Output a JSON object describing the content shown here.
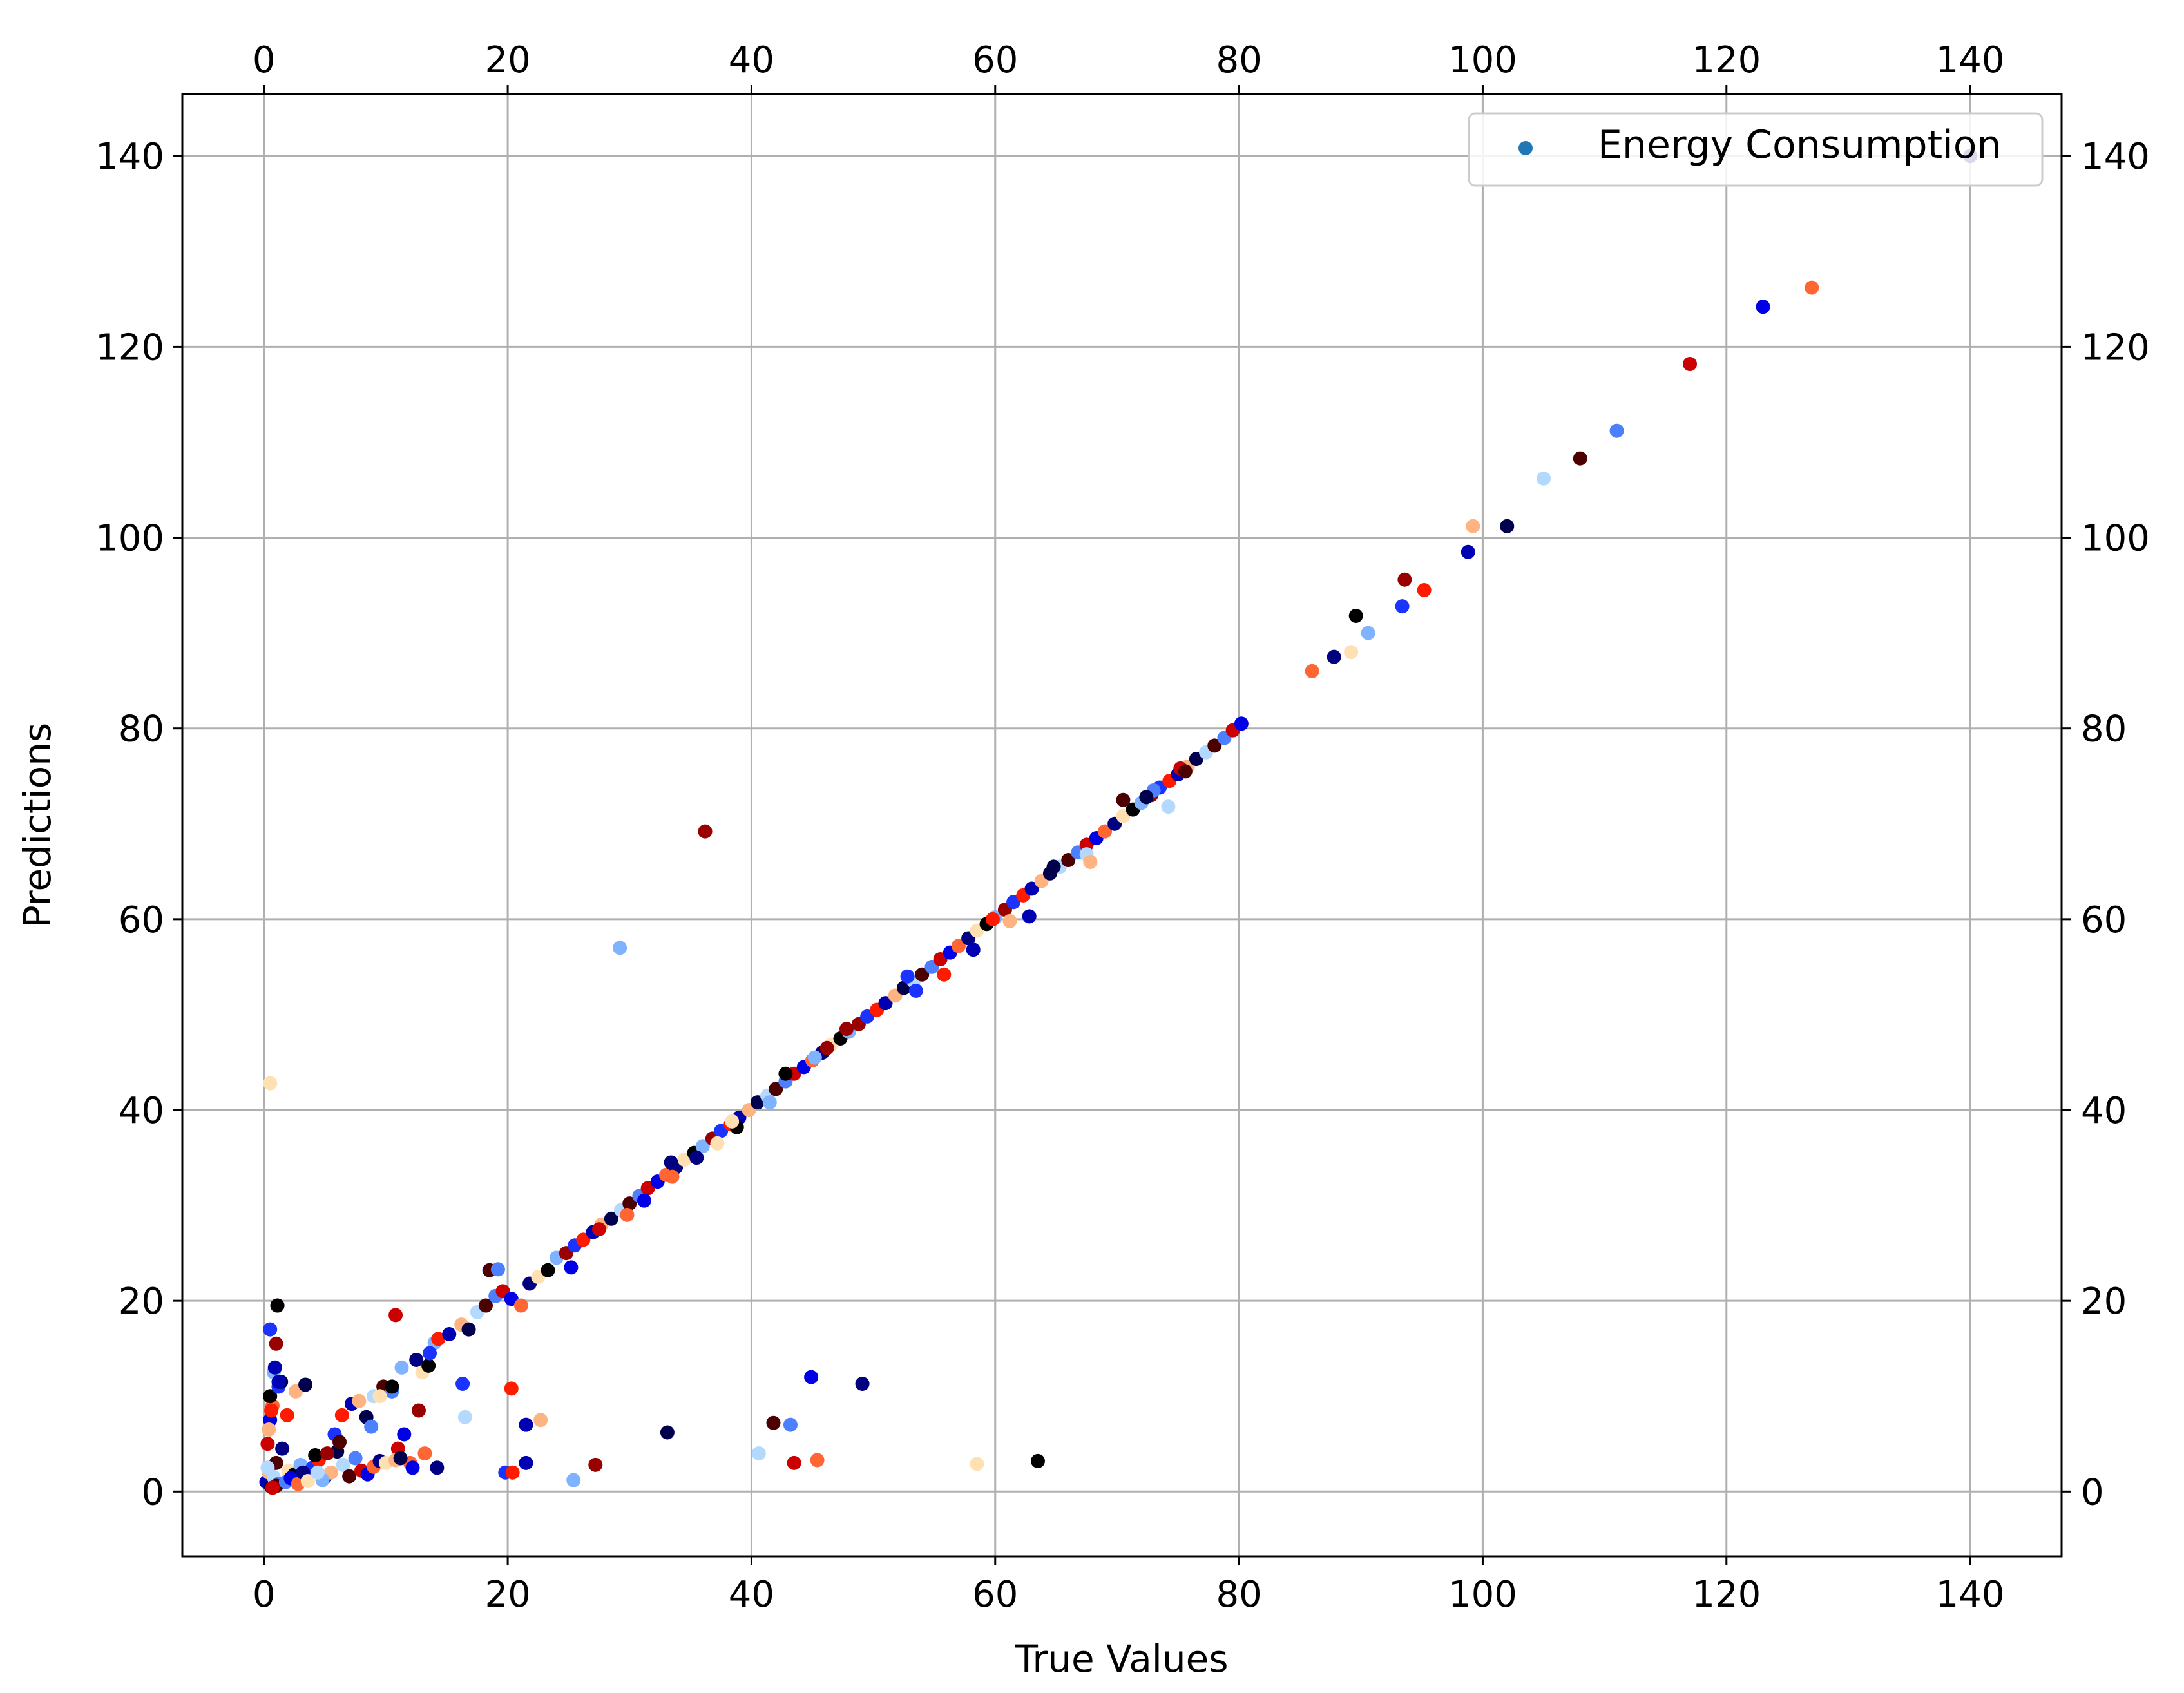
{
  "chart_data": {
    "type": "scatter",
    "xlabel": "True Values",
    "ylabel": "Predictions",
    "xlim": [
      -6.7,
      147.5
    ],
    "ylim": [
      -6.8,
      146.5
    ],
    "xticks": [
      0,
      20,
      40,
      60,
      80,
      100,
      120,
      140
    ],
    "yticks": [
      0,
      20,
      40,
      60,
      80,
      100,
      120,
      140
    ],
    "tick_labels": {
      "bottom": [
        "0",
        "20",
        "40",
        "60",
        "80",
        "100",
        "120",
        "140"
      ],
      "top": [
        "0",
        "20",
        "40",
        "60",
        "80",
        "100",
        "120",
        "140"
      ],
      "left": [
        "0",
        "20",
        "40",
        "60",
        "80",
        "100",
        "120",
        "140"
      ],
      "right": [
        "0",
        "20",
        "40",
        "60",
        "80",
        "100",
        "120",
        "140"
      ]
    },
    "grid": true,
    "legend": {
      "position": "top-right",
      "entries": [
        {
          "label": "Energy Consumption",
          "color": "#1f77b4"
        }
      ]
    },
    "point_colors": [
      "#000000",
      "#00004d",
      "#000080",
      "#0000b3",
      "#0000e6",
      "#1a33ff",
      "#4d80ff",
      "#80b3ff",
      "#b3d9ff",
      "#ffe0b3",
      "#ffb380",
      "#ff6633",
      "#ff1a00",
      "#cc0000",
      "#990000",
      "#4d0000"
    ],
    "series": [
      {
        "name": "Energy Consumption",
        "x": [
          0.2,
          0.4,
          0.6,
          0.8,
          1.0,
          1.2,
          0.3,
          0.5,
          0.7,
          1.5,
          2.0,
          2.5,
          3.0,
          3.5,
          4.0,
          4.5,
          5.0,
          5.5,
          6.0,
          6.5,
          7.0,
          7.5,
          8.0,
          8.5,
          9.0,
          9.5,
          10.0,
          0.5,
          0.8,
          1.0,
          1.2,
          0.6,
          0.9,
          0.4,
          1.4,
          0.3,
          1.0,
          1.8,
          0.7,
          2.2,
          2.8,
          3.2,
          3.6,
          4.2,
          4.8,
          5.2,
          5.8,
          6.4,
          7.2,
          7.8,
          8.4,
          9.0,
          9.8,
          10.5,
          11.0,
          11.5,
          12.0,
          12.5,
          13.0,
          13.5,
          14.0,
          1.1,
          0.5,
          1.9,
          1.2,
          2.6,
          3.4,
          4.4,
          6.2,
          8.8,
          10.8,
          12.2,
          13.2,
          14.2,
          9.5,
          10.5,
          11.3,
          12.7,
          13.6,
          14.3,
          15.2,
          16.2,
          16.8,
          17.5,
          18.2,
          19.0,
          19.6,
          20.3,
          21.1,
          21.8,
          22.5,
          23.3,
          24.0,
          24.8,
          25.5,
          26.2,
          27.0,
          27.7,
          28.5,
          29.3,
          30.0,
          30.8,
          31.5,
          32.3,
          33.0,
          33.8,
          34.5,
          35.3,
          36.0,
          36.8,
          37.5,
          38.3,
          39.0,
          39.8,
          40.5,
          41.3,
          42.0,
          42.8,
          43.5,
          44.3,
          45.0,
          45.8,
          46.5,
          47.3,
          48.0,
          48.8,
          49.5,
          50.3,
          51.0,
          51.8,
          52.5,
          53.3,
          54.0,
          54.8,
          55.5,
          56.3,
          57.0,
          57.8,
          58.5,
          59.3,
          60.0,
          60.8,
          61.5,
          62.3,
          63.0,
          63.8,
          64.5,
          65.3,
          66.0,
          66.8,
          67.5,
          68.3,
          69.0,
          69.8,
          70.5,
          71.3,
          72.0,
          72.8,
          73.5,
          74.3,
          75.0,
          75.8,
          76.5,
          77.3,
          78.0,
          78.8,
          79.5,
          80.2,
          86.0,
          87.8,
          89.2,
          89.6,
          90.6,
          93.6,
          93.4,
          95.2,
          98.8,
          99.2,
          102.0,
          105.0,
          108.0,
          111.0,
          117.0,
          123.0,
          127.0,
          140.0,
          0.5,
          1.1,
          29.2,
          36.2,
          16.3,
          20.3,
          21.5,
          22.7,
          33.1,
          40.6,
          41.8,
          43.2,
          43.5,
          44.9,
          45.4,
          49.1,
          58.5,
          63.5,
          25.4,
          27.2,
          19.8,
          20.4,
          21.5,
          10.8,
          11.2,
          16.5,
          18.5,
          19.2,
          27.5,
          31.2,
          33.5,
          35.5,
          37.2,
          38.8,
          41.5,
          47.8,
          53.5,
          55.8,
          58.2,
          61.2,
          64.8,
          67.5,
          70.5,
          73.0,
          75.2,
          25.2,
          29.8,
          33.4,
          38.4,
          42.8,
          45.2,
          46.2,
          52.8,
          59.8,
          62.8,
          67.8,
          72.4,
          74.2,
          75.6
        ],
        "y": [
          1.0,
          2.0,
          0.5,
          1.5,
          3.0,
          0.8,
          5.0,
          7.5,
          9.0,
          4.5,
          2.2,
          1.8,
          2.8,
          1.2,
          2.5,
          3.3,
          1.5,
          2.0,
          4.2,
          2.8,
          1.6,
          3.5,
          2.2,
          1.8,
          2.6,
          3.2,
          3.0,
          10.0,
          12.5,
          15.5,
          11.0,
          8.5,
          13.0,
          6.5,
          11.5,
          2.5,
          0.6,
          1.0,
          0.4,
          1.4,
          0.8,
          2.0,
          1.1,
          3.8,
          1.2,
          4.0,
          6.0,
          8.0,
          9.2,
          9.5,
          7.8,
          10.0,
          11.0,
          10.5,
          4.5,
          6.0,
          3.0,
          13.8,
          12.5,
          13.2,
          15.6,
          19.5,
          17.0,
          8.0,
          11.5,
          10.5,
          11.2,
          2.0,
          5.2,
          6.8,
          18.5,
          2.5,
          4.0,
          2.5,
          10.0,
          11.0,
          13.0,
          8.5,
          14.5,
          16.0,
          16.5,
          17.5,
          17.0,
          18.8,
          19.5,
          20.5,
          21.0,
          20.2,
          19.5,
          21.8,
          22.5,
          23.2,
          24.5,
          25.0,
          25.8,
          26.4,
          27.2,
          28.0,
          28.6,
          29.5,
          30.2,
          31.0,
          31.8,
          32.5,
          33.2,
          34.0,
          34.8,
          35.5,
          36.2,
          37.0,
          37.8,
          38.5,
          39.2,
          40.0,
          40.8,
          41.5,
          42.2,
          43.0,
          43.8,
          44.5,
          45.2,
          46.0,
          46.8,
          47.5,
          48.2,
          49.0,
          49.8,
          50.5,
          51.2,
          52.0,
          52.8,
          53.5,
          54.2,
          55.0,
          55.8,
          56.5,
          57.2,
          58.0,
          58.8,
          59.5,
          60.2,
          61.0,
          61.8,
          62.5,
          63.2,
          64.0,
          64.8,
          65.5,
          66.2,
          67.0,
          67.8,
          68.5,
          69.2,
          70.0,
          70.8,
          71.5,
          72.2,
          73.0,
          73.8,
          74.5,
          75.2,
          76.0,
          76.8,
          77.5,
          78.2,
          79.0,
          79.8,
          80.5,
          86.0,
          87.5,
          88.0,
          91.8,
          90.0,
          95.6,
          92.8,
          94.5,
          98.5,
          101.2,
          101.2,
          106.2,
          108.3,
          111.2,
          118.2,
          124.2,
          126.2,
          140.0,
          42.8,
          19.5,
          57.0,
          69.2,
          11.3,
          10.8,
          7.0,
          7.5,
          6.2,
          4.0,
          7.2,
          7.0,
          3.0,
          12.0,
          3.3,
          11.3,
          2.9,
          3.2,
          1.2,
          2.8,
          2.0,
          2.0,
          3.0,
          3.3,
          3.5,
          7.8,
          23.2,
          23.3,
          27.5,
          30.5,
          33.0,
          35.0,
          36.5,
          38.2,
          40.8,
          48.5,
          52.5,
          54.2,
          56.8,
          59.8,
          65.5,
          66.8,
          72.5,
          73.5,
          75.8,
          23.5,
          29.0,
          34.5,
          38.8,
          43.8,
          45.5,
          46.5,
          54.0,
          60.0,
          60.3,
          66.0,
          72.8,
          71.8,
          75.5
        ]
      }
    ]
  }
}
